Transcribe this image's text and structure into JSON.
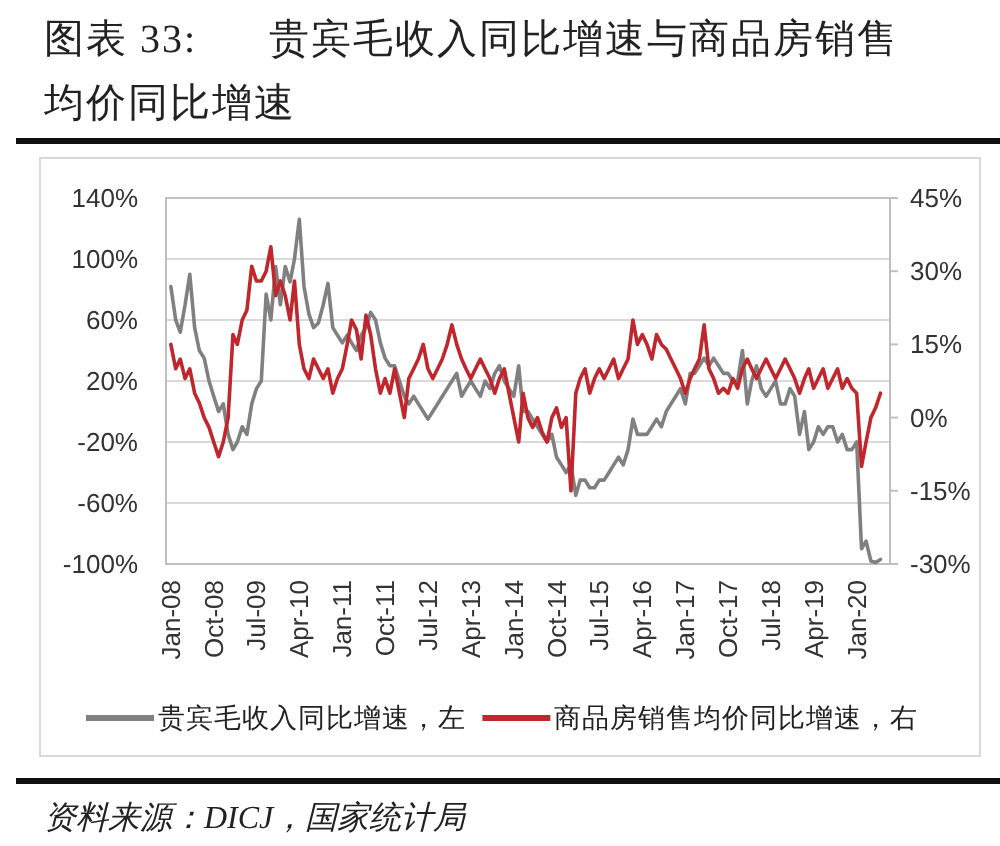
{
  "chart_data": {
    "type": "line",
    "title": "图表 33:      贵宾毛收入同比增速与商品房销售均价同比增速",
    "x": [
      "2008-01",
      "2008-02",
      "2008-03",
      "2008-04",
      "2008-05",
      "2008-06",
      "2008-07",
      "2008-08",
      "2008-09",
      "2008-10",
      "2008-11",
      "2008-12",
      "2009-01",
      "2009-02",
      "2009-03",
      "2009-04",
      "2009-05",
      "2009-06",
      "2009-07",
      "2009-08",
      "2009-09",
      "2009-10",
      "2009-11",
      "2009-12",
      "2010-01",
      "2010-02",
      "2010-03",
      "2010-04",
      "2010-05",
      "2010-06",
      "2010-07",
      "2010-08",
      "2010-09",
      "2010-10",
      "2010-11",
      "2010-12",
      "2011-01",
      "2011-02",
      "2011-03",
      "2011-04",
      "2011-05",
      "2011-06",
      "2011-07",
      "2011-08",
      "2011-09",
      "2011-10",
      "2011-11",
      "2011-12",
      "2012-01",
      "2012-02",
      "2012-03",
      "2012-04",
      "2012-05",
      "2012-06",
      "2012-07",
      "2012-08",
      "2012-09",
      "2012-10",
      "2012-11",
      "2012-12",
      "2013-01",
      "2013-02",
      "2013-03",
      "2013-04",
      "2013-05",
      "2013-06",
      "2013-07",
      "2013-08",
      "2013-09",
      "2013-10",
      "2013-11",
      "2013-12",
      "2014-01",
      "2014-02",
      "2014-03",
      "2014-04",
      "2014-05",
      "2014-06",
      "2014-07",
      "2014-08",
      "2014-09",
      "2014-10",
      "2014-11",
      "2014-12",
      "2015-01",
      "2015-02",
      "2015-03",
      "2015-04",
      "2015-05",
      "2015-06",
      "2015-07",
      "2015-08",
      "2015-09",
      "2015-10",
      "2015-11",
      "2015-12",
      "2016-01",
      "2016-02",
      "2016-03",
      "2016-04",
      "2016-05",
      "2016-06",
      "2016-07",
      "2016-08",
      "2016-09",
      "2016-10",
      "2016-11",
      "2016-12",
      "2017-01",
      "2017-02",
      "2017-03",
      "2017-04",
      "2017-05",
      "2017-06",
      "2017-07",
      "2017-08",
      "2017-09",
      "2017-10",
      "2017-11",
      "2017-12",
      "2018-01",
      "2018-02",
      "2018-03",
      "2018-04",
      "2018-05",
      "2018-06",
      "2018-07",
      "2018-08",
      "2018-09",
      "2018-10",
      "2018-11",
      "2018-12",
      "2019-01",
      "2019-02",
      "2019-03",
      "2019-04",
      "2019-05",
      "2019-06",
      "2019-07",
      "2019-08",
      "2019-09",
      "2019-10",
      "2019-11",
      "2019-12",
      "2020-01",
      "2020-02",
      "2020-03",
      "2020-04",
      "2020-05",
      "2020-06"
    ],
    "series": [
      {
        "name": "贵宾毛收入同比增速，左",
        "color": "#808080",
        "values": [
          82,
          60,
          52,
          70,
          90,
          55,
          40,
          35,
          20,
          10,
          0,
          5,
          -15,
          -25,
          -20,
          -10,
          -15,
          5,
          15,
          20,
          77,
          60,
          95,
          70,
          95,
          85,
          100,
          126,
          82,
          64,
          55,
          58,
          70,
          84,
          55,
          50,
          45,
          50,
          45,
          40,
          50,
          55,
          65,
          60,
          45,
          35,
          30,
          30,
          20,
          10,
          5,
          10,
          5,
          0,
          -5,
          0,
          5,
          10,
          15,
          20,
          25,
          10,
          15,
          20,
          15,
          10,
          20,
          15,
          25,
          30,
          20,
          15,
          10,
          30,
          0,
          0,
          -5,
          -10,
          -15,
          -20,
          -15,
          -30,
          -35,
          -40,
          -35,
          -55,
          -45,
          -45,
          -50,
          -50,
          -45,
          -45,
          -40,
          -35,
          -30,
          -35,
          -25,
          -5,
          -15,
          -15,
          -15,
          -10,
          -5,
          -10,
          0,
          5,
          10,
          15,
          5,
          25,
          25,
          30,
          35,
          30,
          35,
          30,
          25,
          25,
          20,
          20,
          40,
          5,
          20,
          30,
          15,
          10,
          15,
          20,
          5,
          5,
          15,
          10,
          -15,
          0,
          -25,
          -20,
          -10,
          -15,
          -10,
          -10,
          -20,
          -15,
          -25,
          -25,
          -20,
          -90,
          -85,
          -98,
          -99,
          -97
        ]
      },
      {
        "name": "商品房销售均价同比增速，右",
        "color": "#c0272d",
        "axis": "y2",
        "values": [
          15,
          10,
          12,
          8,
          10,
          5,
          3,
          0,
          -2,
          -5,
          -8,
          -5,
          0,
          17,
          15,
          20,
          22,
          31,
          28,
          28,
          30,
          35,
          25,
          28,
          25,
          20,
          28,
          15,
          10,
          8,
          12,
          10,
          8,
          10,
          5,
          8,
          10,
          15,
          20,
          18,
          12,
          21,
          17,
          10,
          5,
          8,
          5,
          10,
          5,
          0,
          8,
          10,
          12,
          15,
          10,
          8,
          10,
          12,
          15,
          19,
          15,
          12,
          10,
          8,
          10,
          12,
          10,
          8,
          5,
          8,
          10,
          5,
          0,
          -5,
          5,
          0,
          -2,
          0,
          -3,
          -5,
          0,
          2,
          -2,
          0,
          -15,
          5,
          8,
          10,
          5,
          8,
          10,
          8,
          10,
          12,
          8,
          10,
          12,
          20,
          15,
          17,
          15,
          12,
          17,
          15,
          14,
          12,
          10,
          8,
          5,
          8,
          10,
          12,
          19,
          10,
          8,
          5,
          6,
          5,
          8,
          6,
          10,
          12,
          10,
          8,
          10,
          12,
          10,
          8,
          10,
          12,
          10,
          8,
          5,
          8,
          10,
          6,
          8,
          10,
          6,
          8,
          10,
          6,
          8,
          6,
          5,
          -10,
          -5,
          0,
          2,
          5
        ]
      }
    ],
    "xlim": [
      "2007-12",
      "2020-08"
    ],
    "xticks": [
      {
        "value": "2008-01",
        "label": "Jan-08"
      },
      {
        "value": "2008-10",
        "label": "Oct-08"
      },
      {
        "value": "2009-07",
        "label": "Jul-09"
      },
      {
        "value": "2010-04",
        "label": "Apr-10"
      },
      {
        "value": "2011-01",
        "label": "Jan-11"
      },
      {
        "value": "2011-10",
        "label": "Oct-11"
      },
      {
        "value": "2012-07",
        "label": "Jul-12"
      },
      {
        "value": "2013-04",
        "label": "Apr-13"
      },
      {
        "value": "2014-01",
        "label": "Jan-14"
      },
      {
        "value": "2014-10",
        "label": "Oct-14"
      },
      {
        "value": "2015-07",
        "label": "Jul-15"
      },
      {
        "value": "2016-04",
        "label": "Apr-16"
      },
      {
        "value": "2017-01",
        "label": "Jan-17"
      },
      {
        "value": "2017-10",
        "label": "Oct-17"
      },
      {
        "value": "2018-07",
        "label": "Jul-18"
      },
      {
        "value": "2019-04",
        "label": "Apr-19"
      },
      {
        "value": "2020-01",
        "label": "Jan-20"
      }
    ],
    "ylim": [
      -100,
      140
    ],
    "yticks": [
      {
        "value": -100,
        "label": "-100%"
      },
      {
        "value": -60,
        "label": "-60%"
      },
      {
        "value": -20,
        "label": "-20%"
      },
      {
        "value": 20,
        "label": "20%"
      },
      {
        "value": 60,
        "label": "60%"
      },
      {
        "value": 100,
        "label": "100%"
      },
      {
        "value": 140,
        "label": "140%"
      }
    ],
    "y2lim": [
      -30,
      45
    ],
    "y2ticks": [
      {
        "value": -30,
        "label": "-30%"
      },
      {
        "value": -15,
        "label": "-15%"
      },
      {
        "value": 0,
        "label": "0%"
      },
      {
        "value": 15,
        "label": "15%"
      },
      {
        "value": 30,
        "label": "30%"
      },
      {
        "value": 45,
        "label": "45%"
      }
    ],
    "grid": "y",
    "legend": "bottom",
    "annotations": [
      "资料来源：DICJ，国家统计局"
    ]
  }
}
